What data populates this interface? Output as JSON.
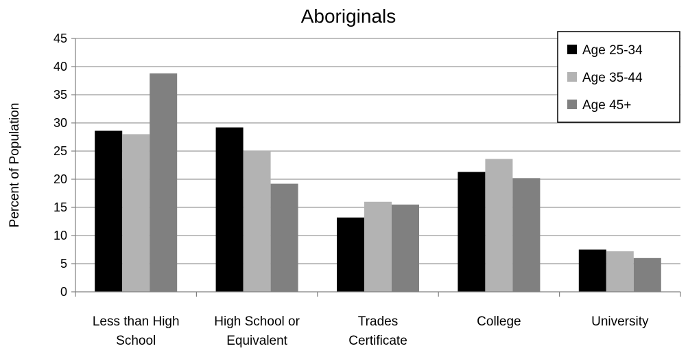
{
  "chart_data": {
    "type": "bar",
    "title": "Aboriginals",
    "xlabel": "",
    "ylabel": "Percent of Population",
    "ylim": [
      0,
      45
    ],
    "yticks": [
      0,
      5,
      10,
      15,
      20,
      25,
      30,
      35,
      40,
      45
    ],
    "grid": true,
    "legend_position": "top-right",
    "categories": [
      [
        "Less than High",
        "School"
      ],
      [
        "High School or",
        "Equivalent"
      ],
      [
        "Trades",
        "Certificate"
      ],
      [
        "College"
      ],
      [
        "University"
      ]
    ],
    "series": [
      {
        "name": "Age 25-34",
        "color": "#000000",
        "values": [
          28.6,
          29.2,
          13.2,
          21.3,
          7.5
        ]
      },
      {
        "name": "Age 35-44",
        "color": "#b3b3b3",
        "values": [
          28.0,
          25.0,
          16.0,
          23.6,
          7.2
        ]
      },
      {
        "name": "Age 45+",
        "color": "#808080",
        "values": [
          38.8,
          19.2,
          15.5,
          20.2,
          6.0
        ]
      }
    ]
  }
}
